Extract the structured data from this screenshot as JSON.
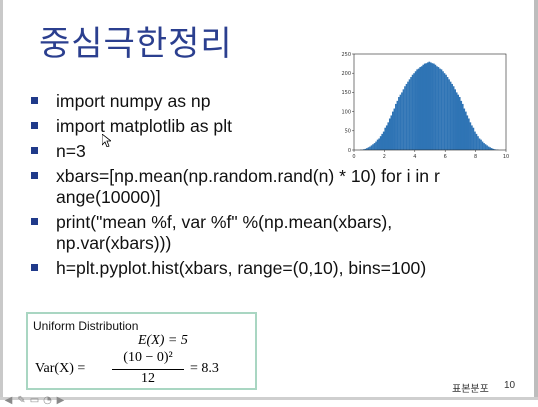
{
  "slide": {
    "title": "중심극한정리",
    "bullets": [
      "import numpy as np",
      "import matplotlib as plt",
      "n=3",
      "xbars=[np.mean(np.random.rand(n) * 10) for i in r\nange(10000)]",
      "print(\"mean %f, var %f\" %(np.mean(xbars),\nnp.var(xbars)))",
      "h=plt.pyplot.hist(xbars, range=(0,10), bins=100)"
    ],
    "formula_box": {
      "title": "Uniform Distribution",
      "expectation": "E(X) = 5",
      "var_lhs": "Var(X) =",
      "numerator": "(10 − 0)²",
      "denominator": "12",
      "result": "= 8.3"
    },
    "footer_label": "표본분포",
    "page_number": "10"
  },
  "chart_data": {
    "type": "bar",
    "x": [
      0.05,
      0.15,
      0.25,
      0.35,
      0.45,
      0.55,
      0.65,
      0.75,
      0.85,
      0.95,
      1.05,
      1.15,
      1.25,
      1.35,
      1.45,
      1.55,
      1.65,
      1.75,
      1.85,
      1.95,
      2.05,
      2.15,
      2.25,
      2.35,
      2.45,
      2.55,
      2.65,
      2.75,
      2.85,
      2.95,
      3.05,
      3.15,
      3.25,
      3.35,
      3.45,
      3.55,
      3.65,
      3.75,
      3.85,
      3.95,
      4.05,
      4.15,
      4.25,
      4.35,
      4.45,
      4.55,
      4.65,
      4.75,
      4.85,
      4.95,
      5.05,
      5.15,
      5.25,
      5.35,
      5.45,
      5.55,
      5.65,
      5.75,
      5.85,
      5.95,
      6.05,
      6.15,
      6.25,
      6.35,
      6.45,
      6.55,
      6.65,
      6.75,
      6.85,
      6.95,
      7.05,
      7.15,
      7.25,
      7.35,
      7.45,
      7.55,
      7.65,
      7.75,
      7.85,
      7.95,
      8.05,
      8.15,
      8.25,
      8.35,
      8.45,
      8.55,
      8.65,
      8.75,
      8.85,
      8.95,
      9.05,
      9.15,
      9.25,
      9.35,
      9.45,
      9.55,
      9.65,
      9.75,
      9.85,
      9.95
    ],
    "values": [
      0,
      0,
      0,
      0,
      1,
      1,
      2,
      3,
      5,
      7,
      9,
      12,
      15,
      18,
      22,
      27,
      30,
      36,
      42,
      48,
      58,
      64,
      72,
      82,
      90,
      100,
      108,
      120,
      128,
      138,
      144,
      150,
      158,
      166,
      172,
      178,
      184,
      190,
      196,
      200,
      205,
      210,
      212,
      216,
      218,
      222,
      225,
      226,
      228,
      230,
      228,
      226,
      225,
      222,
      218,
      216,
      212,
      210,
      205,
      200,
      196,
      190,
      184,
      178,
      172,
      166,
      158,
      150,
      144,
      138,
      128,
      120,
      108,
      100,
      90,
      82,
      72,
      64,
      58,
      48,
      42,
      36,
      30,
      27,
      22,
      18,
      15,
      12,
      9,
      7,
      5,
      3,
      2,
      1,
      1,
      0,
      0,
      0,
      0,
      0
    ],
    "xlim": [
      0,
      10
    ],
    "ylim": [
      0,
      250
    ],
    "xticks": [
      "0",
      "2",
      "4",
      "6",
      "8",
      "10"
    ],
    "yticks": [
      "0",
      "50",
      "100",
      "150",
      "200",
      "250"
    ],
    "color": "#2f74b5"
  }
}
